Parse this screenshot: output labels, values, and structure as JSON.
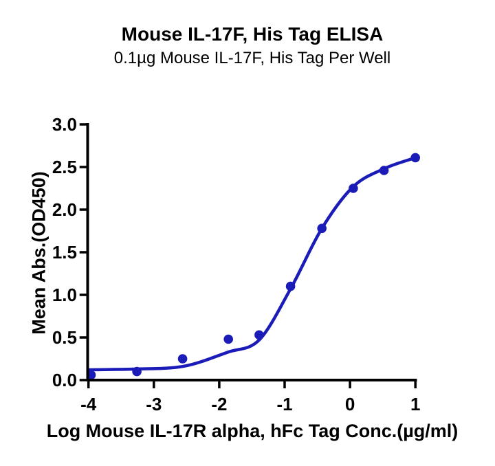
{
  "chart_data": {
    "type": "scatter",
    "title": "Mouse IL-17F, His Tag ELISA",
    "subtitle": "0.1µg Mouse IL-17F, His Tag Per Well",
    "xlabel": "Log Mouse IL-17R alpha, hFc Tag Conc.(µg/ml)",
    "ylabel": "Mean Abs.(OD450)",
    "xlim": [
      -4,
      1
    ],
    "ylim": [
      0,
      3
    ],
    "x_ticks": [
      -4,
      -3,
      -2,
      -1,
      0,
      1
    ],
    "x_tick_labels": [
      "-4",
      "-3",
      "-2",
      "-1",
      "0",
      "1"
    ],
    "y_ticks": [
      0,
      0.5,
      1,
      1.5,
      2,
      2.5,
      3
    ],
    "y_tick_labels": [
      "0.0",
      "0.5",
      "1.0",
      "1.5",
      "2.0",
      "2.5",
      "3.0"
    ],
    "grid": false,
    "legend": null,
    "points": {
      "x": [
        -3.96,
        -3.26,
        -2.56,
        -1.86,
        -1.39,
        -0.91,
        -0.43,
        0.05,
        0.52,
        1.0
      ],
      "y": [
        0.06,
        0.1,
        0.25,
        0.48,
        0.53,
        1.1,
        1.78,
        2.25,
        2.46,
        2.61
      ]
    },
    "fit_curve": {
      "x": [
        -4.0,
        -3.26,
        -2.56,
        -1.86,
        -1.39,
        -0.91,
        -0.43,
        0.05,
        0.52,
        1.0
      ],
      "y": [
        0.12,
        0.13,
        0.16,
        0.33,
        0.47,
        1.07,
        1.78,
        2.27,
        2.48,
        2.61
      ]
    },
    "marker_color": "#1b1cb8",
    "curve_color": "#1b1cb8",
    "axis_color": "#000000",
    "text_color": "#000000"
  }
}
